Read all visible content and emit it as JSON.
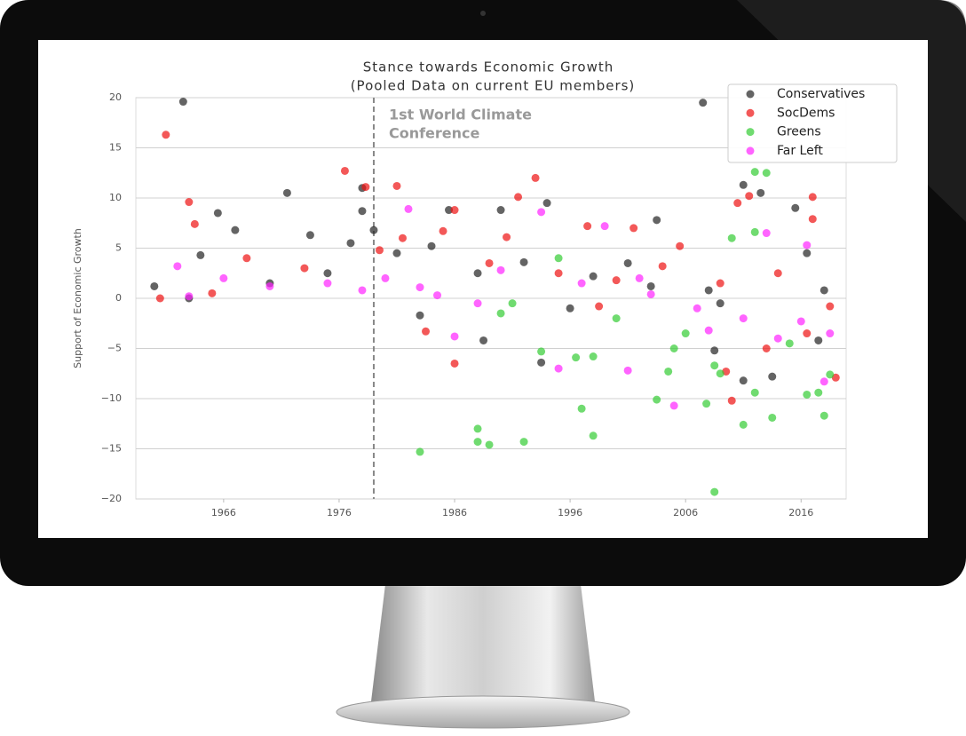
{
  "chart_data": {
    "type": "scatter",
    "title": "Stance towards Economic Growth",
    "subtitle": "(Pooled Data on current EU members)",
    "y_label": "Support of Economic Growth",
    "xlim": [
      1958.4,
      2019.9
    ],
    "xticks": [
      1966,
      1976,
      1986,
      1996,
      2006,
      2016
    ],
    "ylim": [
      -20,
      20
    ],
    "yticks": [
      {
        "value": -20,
        "label": "−20"
      },
      {
        "value": -15,
        "label": "−15"
      },
      {
        "value": -10,
        "label": "−10"
      },
      {
        "value": -5,
        "label": "−5"
      },
      0,
      5,
      10,
      15,
      20
    ],
    "grid": true,
    "legend": "upper right",
    "vline": {
      "x": 1979,
      "annotation": [
        "1st World Climate",
        "Conference"
      ]
    },
    "series": [
      {
        "name": "Conservatives",
        "color": "#222222",
        "x": [
          1962.5,
          2007.5,
          1971.5,
          1978,
          1978,
          1965.5,
          1967,
          1973.5,
          1979,
          1977,
          1985.5,
          1990,
          1994,
          2003.5,
          2015.5,
          2011,
          2012.5,
          1964,
          1981,
          1984,
          1988,
          1992,
          1998,
          2003,
          2008,
          1963,
          1970,
          1975,
          1983,
          1988.5,
          1993.5,
          2008.5,
          2011,
          2013.5,
          2017.5,
          2009,
          1996,
          1960,
          2016.5,
          2001,
          2018
        ],
        "values": [
          19.6,
          19.5,
          10.5,
          11,
          8.7,
          8.5,
          6.8,
          6.3,
          6.8,
          5.5,
          8.8,
          8.8,
          9.5,
          7.8,
          9,
          11.3,
          10.5,
          4.3,
          4.5,
          5.2,
          2.5,
          3.6,
          2.2,
          1.2,
          0.8,
          0,
          1.5,
          2.5,
          -1.7,
          -4.2,
          -6.4,
          -5.2,
          -8.2,
          -7.8,
          -4.2,
          -0.5,
          -1.0,
          1.2,
          4.5,
          3.5,
          0.8
        ]
      },
      {
        "name": "SocDems",
        "color": "#ee1111",
        "x": [
          1961,
          1976.5,
          1981,
          1963,
          1963.5,
          1978.3,
          1991.5,
          1993,
          2010.5,
          2011.5,
          2017,
          2017,
          1986,
          1981.5,
          1985,
          1990.5,
          1997.5,
          2001.5,
          2005.5,
          1968,
          1973,
          1979.5,
          1989,
          1995,
          2000,
          2004,
          2009,
          2014,
          1983.5,
          1986,
          2009.5,
          2010,
          2013,
          2016.5,
          1960.5,
          1965,
          1998.5,
          2018.5,
          2019
        ],
        "values": [
          16.3,
          12.7,
          11.2,
          9.6,
          7.4,
          11.1,
          10.1,
          12,
          9.5,
          10.2,
          10.1,
          7.9,
          8.8,
          6,
          6.7,
          6.1,
          7.2,
          7,
          5.2,
          4,
          3,
          4.8,
          3.5,
          2.5,
          1.8,
          3.2,
          1.5,
          2.5,
          -3.3,
          -6.5,
          -7.3,
          -10.2,
          -5,
          -3.5,
          0,
          0.5,
          -0.8,
          -0.8,
          -7.9
        ]
      },
      {
        "name": "Greens",
        "color": "#33cc33",
        "x": [
          2008.5,
          1983,
          1988,
          1988,
          1989,
          1992,
          1997,
          1998,
          1996.5,
          1998,
          2003.5,
          2004.5,
          2007.8,
          2008.5,
          2009,
          2011,
          2012,
          2013.5,
          2016.5,
          2017.5,
          2018,
          2018.5,
          2012,
          2013,
          2012,
          2010,
          1995,
          1990,
          1993.5,
          2000,
          2005,
          1991,
          2015,
          2006
        ],
        "values": [
          -19.3,
          -15.3,
          -13,
          -14.3,
          -14.6,
          -14.3,
          -11,
          -13.7,
          -5.9,
          -5.8,
          -10.1,
          -7.3,
          -10.5,
          -6.7,
          -7.5,
          -12.6,
          -9.4,
          -11.9,
          -9.6,
          -9.4,
          -11.7,
          -7.6,
          12.6,
          12.5,
          6.6,
          6,
          4,
          -1.5,
          -5.3,
          -2,
          -5,
          -0.5,
          -4.5,
          -3.5
        ]
      },
      {
        "name": "Far Left",
        "color": "#ff22ff",
        "x": [
          1982,
          1993.5,
          1999,
          2013,
          2016.5,
          1962,
          1966,
          1970,
          1975,
          1980,
          1983,
          1988,
          1995,
          2001,
          2005,
          2008,
          2011,
          2014,
          2018,
          2018.5,
          1997,
          2002,
          1986,
          1963,
          1990,
          2007,
          2003,
          1984.5,
          2016,
          1978
        ],
        "values": [
          8.9,
          8.6,
          7.2,
          6.5,
          5.3,
          3.2,
          2,
          1.2,
          1.5,
          2,
          1.1,
          -0.5,
          -7,
          -7.2,
          -10.7,
          -3.2,
          -2,
          -4,
          -8.3,
          -3.5,
          1.5,
          2,
          -3.8,
          0.2,
          2.8,
          -1,
          0.4,
          0.3,
          -2.3,
          0.8
        ]
      }
    ]
  }
}
